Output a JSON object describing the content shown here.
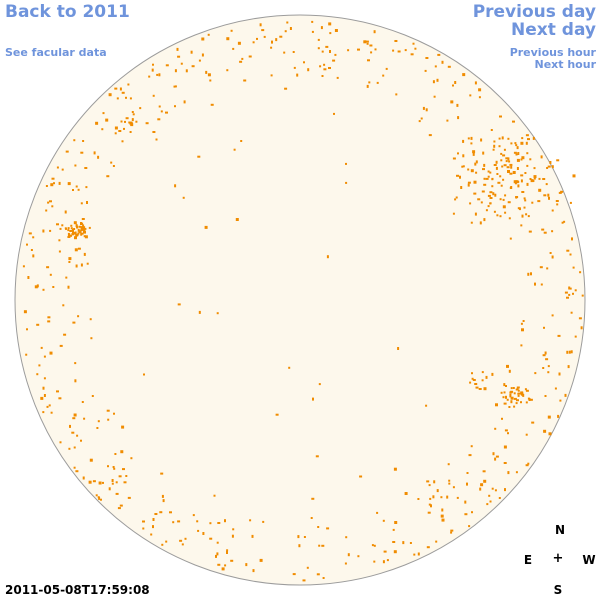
{
  "nav": {
    "back_label": "Back to 2011",
    "facular_label": "See facular data",
    "prev_day_label": "Previous day",
    "next_day_label": "Next day",
    "prev_hour_label": "Previous hour",
    "next_hour_label": "Next hour"
  },
  "compass": {
    "north": "N",
    "south": "S",
    "east": "E",
    "west": "W",
    "center": "+"
  },
  "timestamp": "2011-05-08T17:59:08",
  "colors": {
    "link": "#6f94dc",
    "disk_fill": "#fdf8ec",
    "disk_outline": "#9c9c9c",
    "feature": "#f08c00"
  }
}
